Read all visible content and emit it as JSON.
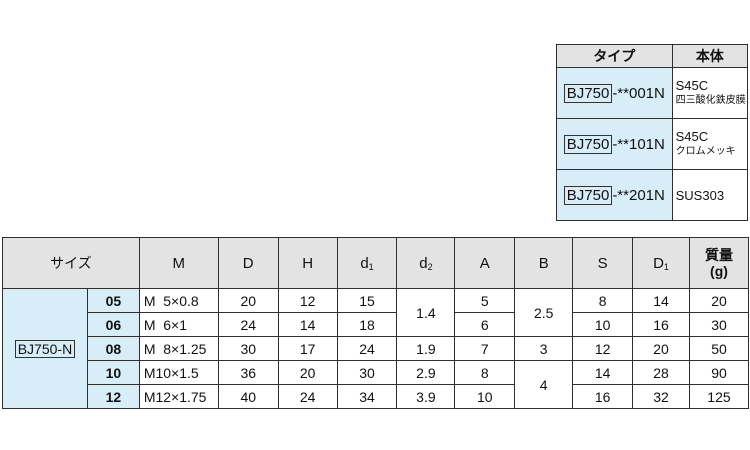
{
  "material_table": {
    "headers": {
      "type": "タイプ",
      "body": "本体"
    },
    "rows": [
      {
        "code_box": "BJ750",
        "code_suffix": "-**001N",
        "material": "S45C",
        "finish": "四三酸化鉄皮膜"
      },
      {
        "code_box": "BJ750",
        "code_suffix": "-**101N",
        "material": "S45C",
        "finish": "クロムメッキ"
      },
      {
        "code_box": "BJ750",
        "code_suffix": "-**201N",
        "material": "SUS303",
        "finish": ""
      }
    ]
  },
  "dimension_table": {
    "headers": {
      "size": "サイズ",
      "M": "M",
      "D": "D",
      "H": "H",
      "d1_base": "d",
      "d1_sub": "1",
      "d2_base": "d",
      "d2_sub": "2",
      "A": "A",
      "B": "B",
      "S": "S",
      "D1_base": "D",
      "D1_sub": "1",
      "mass_line1": "質量",
      "mass_line2": "(g)"
    },
    "series": "BJ750-N",
    "rows": [
      {
        "size": "05",
        "M": "M  5×0.8",
        "D": "20",
        "H": "12",
        "d1": "15",
        "d2": "1.4",
        "A": "5",
        "B": "2.5",
        "S": "8",
        "D1": "14",
        "mass": "20"
      },
      {
        "size": "06",
        "M": "M  6×1",
        "D": "24",
        "H": "14",
        "d1": "18",
        "d2": "",
        "A": "6",
        "B": "",
        "S": "10",
        "D1": "16",
        "mass": "30"
      },
      {
        "size": "08",
        "M": "M  8×1.25",
        "D": "30",
        "H": "17",
        "d1": "24",
        "d2": "1.9",
        "A": "7",
        "B": "3",
        "S": "12",
        "D1": "20",
        "mass": "50"
      },
      {
        "size": "10",
        "M": "M10×1.5",
        "D": "36",
        "H": "20",
        "d1": "30",
        "d2": "2.9",
        "A": "8",
        "B": "4",
        "S": "14",
        "D1": "28",
        "mass": "90"
      },
      {
        "size": "12",
        "M": "M12×1.75",
        "D": "40",
        "H": "24",
        "d1": "34",
        "d2": "3.9",
        "A": "10",
        "B": "",
        "S": "16",
        "D1": "32",
        "mass": "125"
      }
    ]
  }
}
